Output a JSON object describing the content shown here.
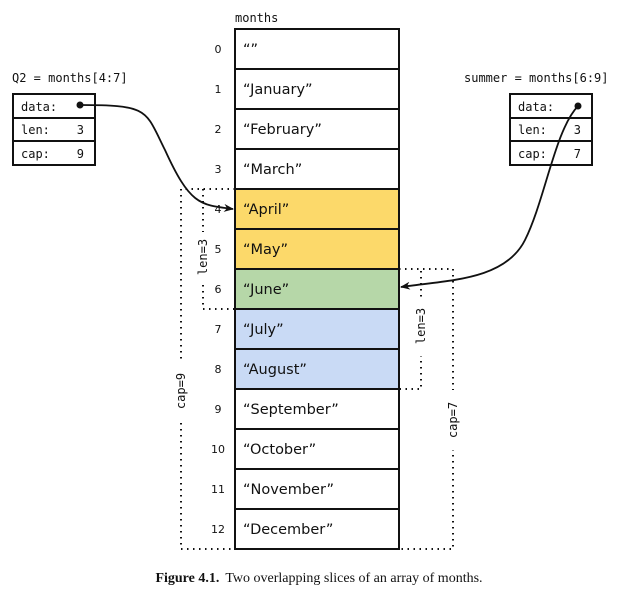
{
  "array": {
    "name": "months",
    "cells": [
      {
        "index": "0",
        "value": "“”",
        "color": "#ffffff"
      },
      {
        "index": "1",
        "value": "“January”",
        "color": "#ffffff"
      },
      {
        "index": "2",
        "value": "“February”",
        "color": "#ffffff"
      },
      {
        "index": "3",
        "value": "“March”",
        "color": "#ffffff"
      },
      {
        "index": "4",
        "value": "“April”",
        "color": "#fcd96a"
      },
      {
        "index": "5",
        "value": "“May”",
        "color": "#fcd96a"
      },
      {
        "index": "6",
        "value": "“June”",
        "color": "#b6d7a8"
      },
      {
        "index": "7",
        "value": "“July”",
        "color": "#c9daf5"
      },
      {
        "index": "8",
        "value": "“August”",
        "color": "#c9daf5"
      },
      {
        "index": "9",
        "value": "“September”",
        "color": "#ffffff"
      },
      {
        "index": "10",
        "value": "“October”",
        "color": "#ffffff"
      },
      {
        "index": "11",
        "value": "“November”",
        "color": "#ffffff"
      },
      {
        "index": "12",
        "value": "“December”",
        "color": "#ffffff"
      }
    ]
  },
  "q2": {
    "label": "Q2 = months[4:7]",
    "data_label": "data:",
    "len_label": "len:",
    "len_value": "3",
    "cap_label": "cap:",
    "cap_value": "9",
    "len_annotation": "len=3",
    "cap_annotation": "cap=9"
  },
  "summer": {
    "label": "summer = months[6:9]",
    "data_label": "data:",
    "len_label": "len:",
    "len_value": "3",
    "cap_label": "cap:",
    "cap_value": "7",
    "len_annotation": "len=3",
    "cap_annotation": "cap=7"
  },
  "caption": {
    "figure": "Figure 4.1.",
    "text": "Two overlapping slices of an array of months."
  }
}
